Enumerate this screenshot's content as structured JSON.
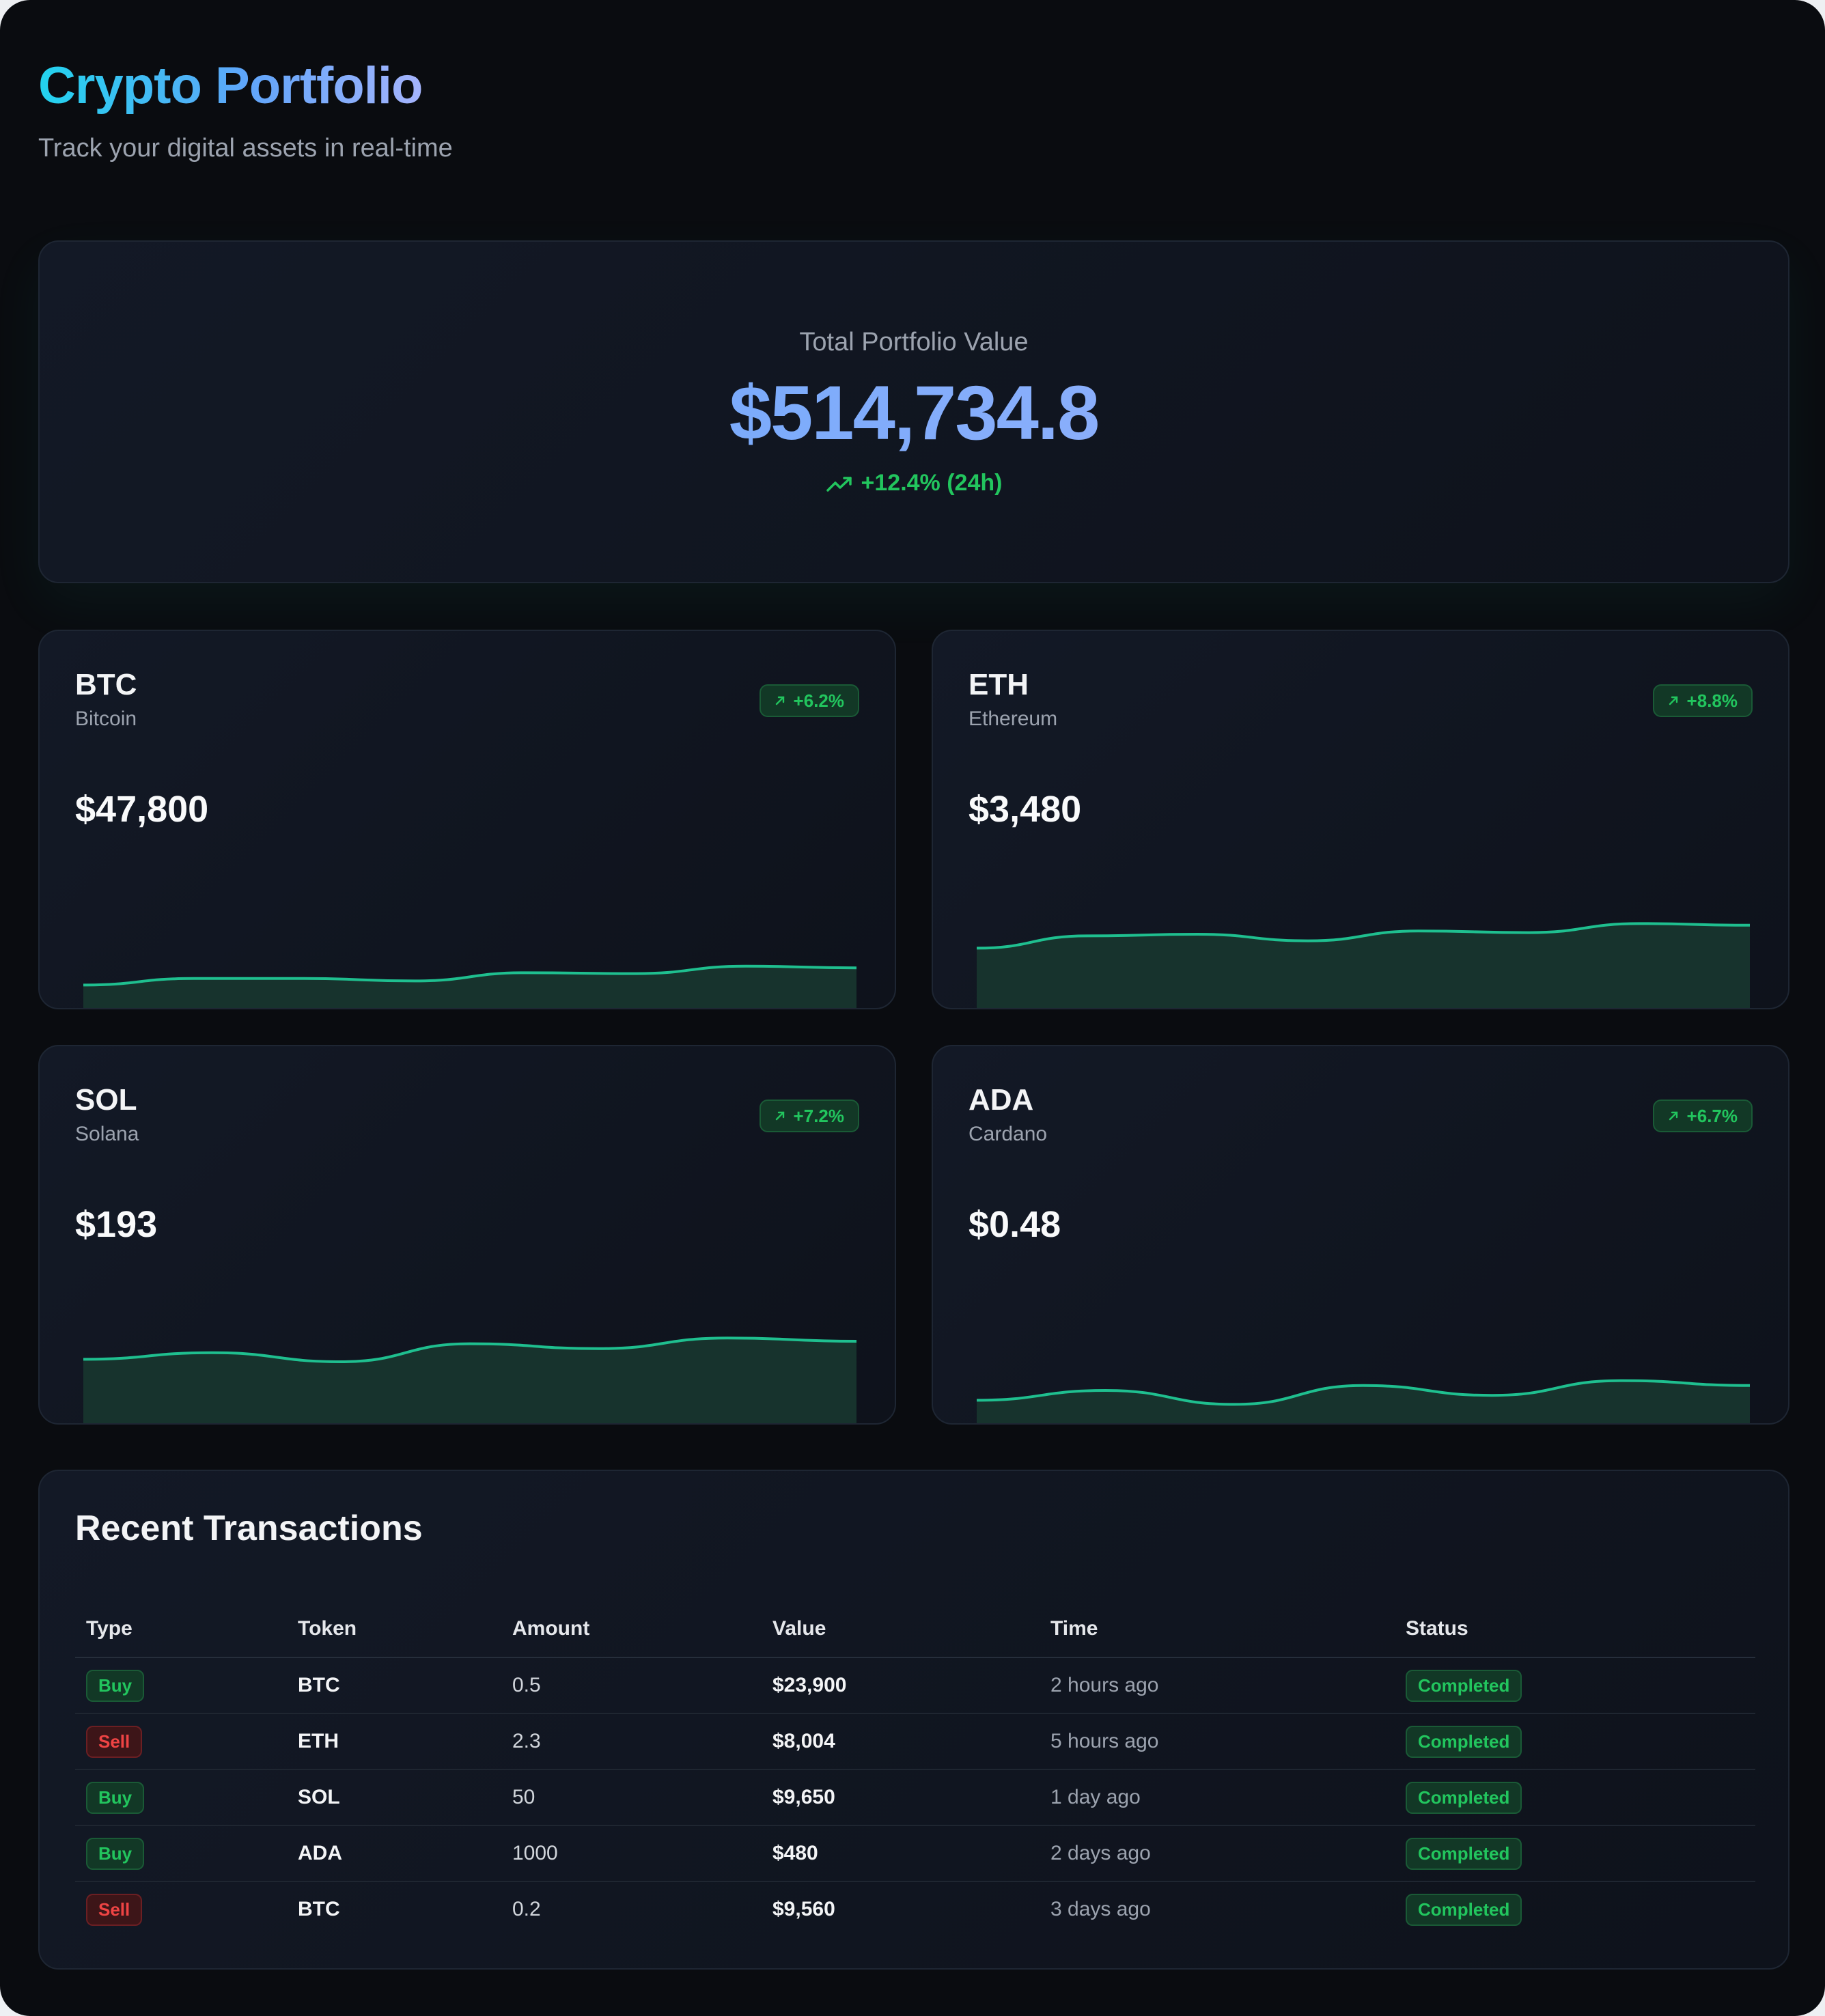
{
  "header": {
    "title": "Crypto Portfolio",
    "subtitle": "Track your digital assets in real-time"
  },
  "portfolio": {
    "label": "Total Portfolio Value",
    "value": "$514,734.8",
    "change": "+12.4% (24h)",
    "change_icon": "trending-up-icon"
  },
  "colors": {
    "accent_green": "#22c55e",
    "accent_red": "#ef4444",
    "sparkline": "#1fbf8f"
  },
  "assets": [
    {
      "symbol": "BTC",
      "name": "Bitcoin",
      "price": "$47,800",
      "change": "+6.2%",
      "spark": [
        28,
        36,
        36,
        33,
        43,
        42,
        51,
        49
      ]
    },
    {
      "symbol": "ETH",
      "name": "Ethereum",
      "price": "$3,480",
      "change": "+8.8%",
      "spark": [
        73,
        88,
        90,
        82,
        94,
        92,
        103,
        101
      ]
    },
    {
      "symbol": "SOL",
      "name": "Solana",
      "price": "$193",
      "change": "+7.2%",
      "spark": [
        78,
        86,
        75,
        97,
        91,
        104,
        100
      ]
    },
    {
      "symbol": "ADA",
      "name": "Cardano",
      "price": "$0.48",
      "change": "+6.7%",
      "spark": [
        28,
        40,
        23,
        46,
        34,
        52,
        46
      ]
    }
  ],
  "transactions": {
    "title": "Recent Transactions",
    "columns": [
      "Type",
      "Token",
      "Amount",
      "Value",
      "Time",
      "Status"
    ],
    "rows": [
      {
        "type": "Buy",
        "token": "BTC",
        "amount": "0.5",
        "value": "$23,900",
        "time": "2 hours ago",
        "status": "Completed"
      },
      {
        "type": "Sell",
        "token": "ETH",
        "amount": "2.3",
        "value": "$8,004",
        "time": "5 hours ago",
        "status": "Completed"
      },
      {
        "type": "Buy",
        "token": "SOL",
        "amount": "50",
        "value": "$9,650",
        "time": "1 day ago",
        "status": "Completed"
      },
      {
        "type": "Buy",
        "token": "ADA",
        "amount": "1000",
        "value": "$480",
        "time": "2 days ago",
        "status": "Completed"
      },
      {
        "type": "Sell",
        "token": "BTC",
        "amount": "0.2",
        "value": "$9,560",
        "time": "3 days ago",
        "status": "Completed"
      }
    ]
  }
}
